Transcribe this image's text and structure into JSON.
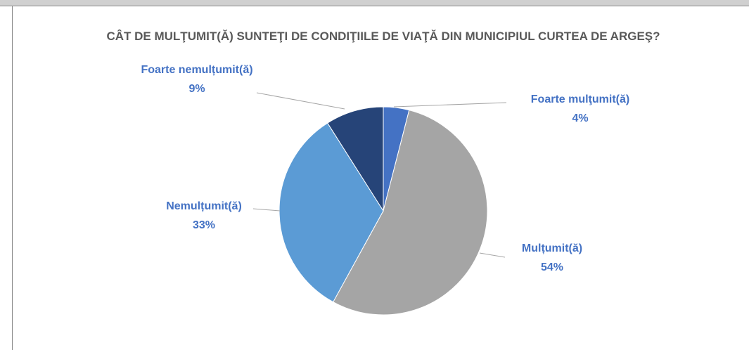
{
  "chart_data": {
    "type": "pie",
    "title": "CÂT DE MULŢUMIT(Ă) SUNTEŢI DE CONDIŢIILE DE VIAŢĂ DIN MUNICIPIUL CURTEA DE ARGEŞ?",
    "categories": [
      "Foarte mulţumit(ă)",
      "Mulțumit(ă)",
      "Nemulțumit(ă)",
      "Foarte nemulțumit(ă)"
    ],
    "values": [
      4,
      54,
      33,
      9
    ],
    "value_labels": [
      "4%",
      "54%",
      "33%",
      "9%"
    ],
    "colors": [
      "#4472c4",
      "#a5a5a5",
      "#5b9bd5",
      "#264478"
    ]
  }
}
